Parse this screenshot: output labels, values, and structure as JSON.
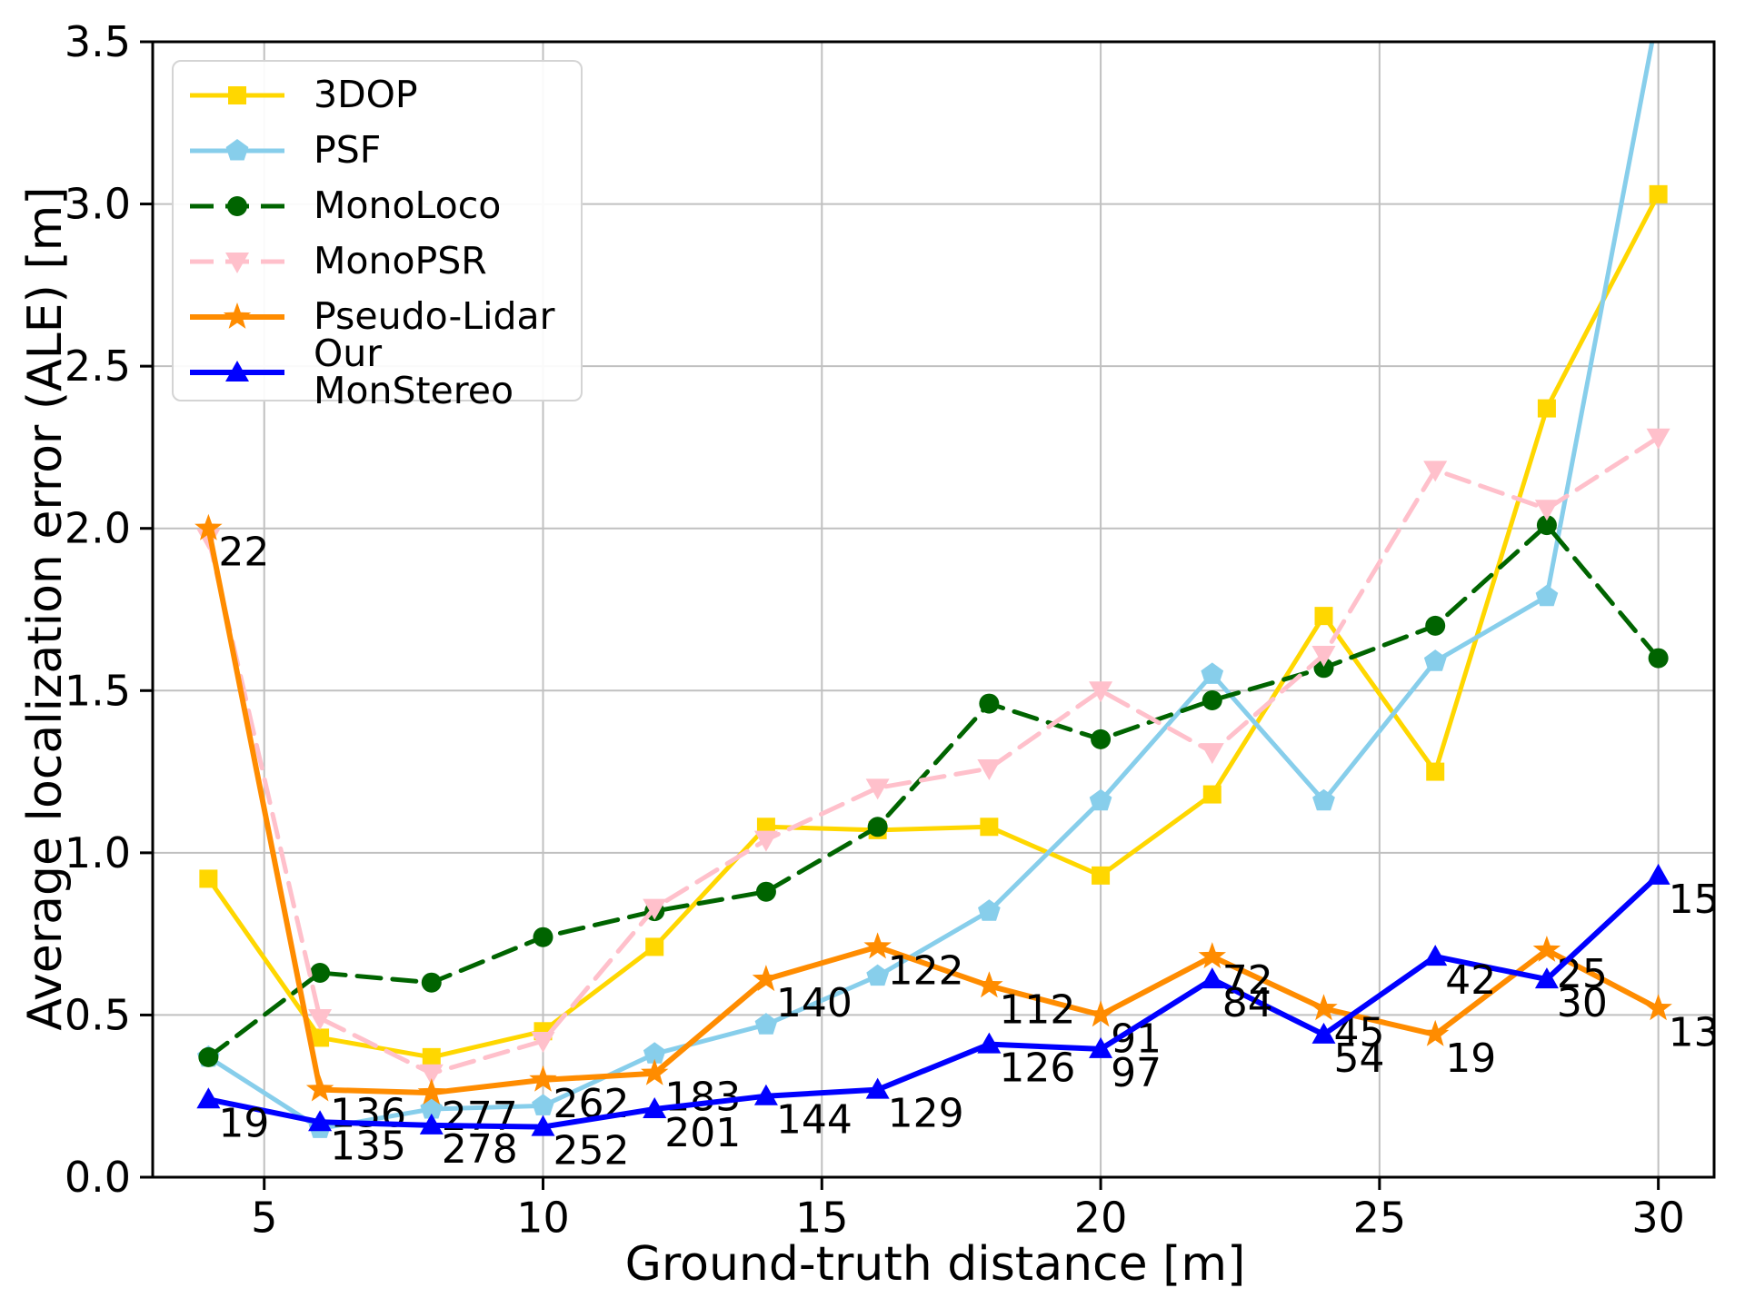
{
  "figure": {
    "xlabel": "Ground-truth distance [m]",
    "ylabel": "Average localization error (ALE) [m]"
  },
  "chart_data": {
    "type": "line",
    "x": [
      4,
      6,
      8,
      10,
      12,
      14,
      16,
      18,
      20,
      22,
      24,
      26,
      28,
      30
    ],
    "xlabel": "Ground-truth distance [m]",
    "ylabel": "Average localization error (ALE) [m]",
    "xlim": [
      3,
      31
    ],
    "ylim": [
      0,
      3.5
    ],
    "xticks": [
      5,
      10,
      15,
      20,
      25,
      30
    ],
    "yticks": [
      0,
      0.5,
      1,
      1.5,
      2,
      2.5,
      3,
      3.5
    ],
    "ytick_labels": [
      "0.0",
      "0.5",
      "1.0",
      "1.5",
      "2.0",
      "2.5",
      "3.0",
      "3.5"
    ],
    "grid": true,
    "grid_color": "#c0c0c0",
    "spine_color": "#000000",
    "legend_position": "upper left",
    "series": [
      {
        "name": "3DOP",
        "color": "#FFD700",
        "marker": "square",
        "dash": "solid",
        "width": 5,
        "values": [
          0.92,
          0.43,
          0.37,
          0.45,
          0.71,
          1.08,
          1.07,
          1.08,
          0.93,
          1.18,
          1.73,
          1.25,
          2.37,
          3.03
        ]
      },
      {
        "name": "PSF",
        "color": "#87CEEB",
        "marker": "pentagon",
        "dash": "solid",
        "width": 5,
        "values": [
          0.37,
          0.15,
          0.21,
          0.22,
          0.38,
          0.47,
          0.62,
          0.82,
          1.16,
          1.55,
          1.16,
          1.59,
          1.79,
          3.6
        ]
      },
      {
        "name": "MonoLoco",
        "color": "#006400",
        "marker": "circle",
        "dash": "dashed",
        "width": 5,
        "values": [
          0.37,
          0.63,
          0.6,
          0.74,
          0.82,
          0.88,
          1.08,
          1.46,
          1.35,
          1.47,
          1.57,
          1.7,
          2.01,
          1.6
        ]
      },
      {
        "name": "MonoPSR",
        "color": "#FFC0CB",
        "marker": "triangle-down",
        "dash": "dashed",
        "width": 5,
        "values": [
          1.97,
          0.49,
          0.32,
          0.42,
          0.83,
          1.04,
          1.2,
          1.26,
          1.5,
          1.31,
          1.61,
          2.18,
          2.06,
          2.28
        ]
      },
      {
        "name": "Pseudo-Lidar",
        "color": "#FF8C00",
        "marker": "star",
        "dash": "solid",
        "width": 6,
        "values": [
          2.0,
          0.27,
          0.26,
          0.3,
          0.32,
          0.61,
          0.71,
          0.59,
          0.5,
          0.68,
          0.52,
          0.44,
          0.7,
          0.52
        ],
        "point_labels": [
          "22",
          "136",
          "277",
          "262",
          "183",
          "140",
          "122",
          "112",
          "91",
          "72",
          "45",
          "19",
          "25",
          "13"
        ]
      },
      {
        "name": "Our MonStereo",
        "color": "#0000FF",
        "marker": "triangle-up",
        "dash": "solid",
        "width": 6,
        "values": [
          0.24,
          0.17,
          0.16,
          0.155,
          0.21,
          0.25,
          0.27,
          0.41,
          0.395,
          0.61,
          0.44,
          0.68,
          0.61,
          0.93
        ],
        "point_labels": [
          "19",
          "135",
          "278",
          "252",
          "201",
          "144",
          "129",
          "126",
          "97",
          "84",
          "54",
          "42",
          "30",
          "15"
        ]
      }
    ]
  }
}
